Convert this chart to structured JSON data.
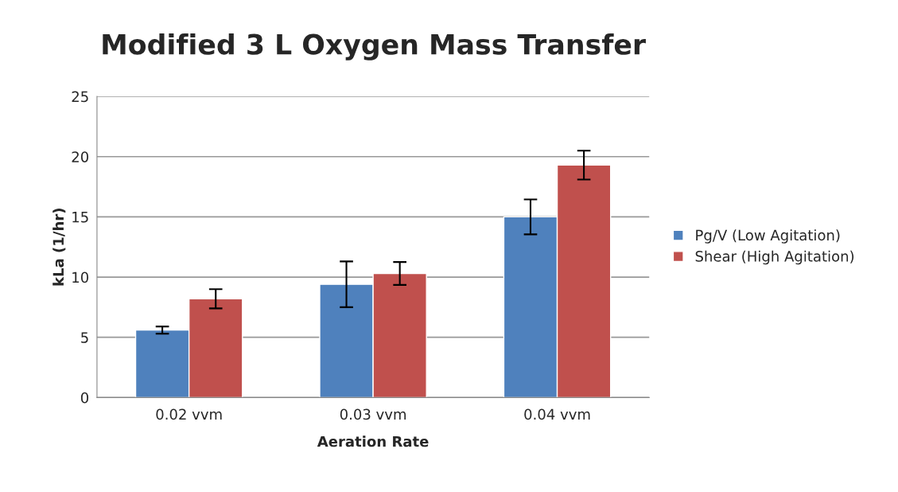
{
  "chart_data": {
    "type": "bar",
    "title": "Modified 3 L Oxygen Mass Transfer",
    "xlabel": "Aeration Rate",
    "ylabel": "kLa (1/hr)",
    "categories": [
      "0.02 vvm",
      "0.03 vvm",
      "0.04 vvm"
    ],
    "series": [
      {
        "name": "Pg/V (Low Agitation)",
        "color": "#4f81bd",
        "values": [
          5.6,
          9.4,
          15.0
        ],
        "errors": [
          0.3,
          1.9,
          1.45
        ]
      },
      {
        "name": "Shear (High Agitation)",
        "color": "#c0504d",
        "values": [
          8.2,
          10.3,
          19.3
        ],
        "errors": [
          0.8,
          0.95,
          1.2
        ]
      }
    ],
    "ylim": [
      0,
      25
    ],
    "yticks": [
      0,
      5,
      10,
      15,
      20,
      25
    ],
    "grid": "y",
    "legend": "right"
  }
}
